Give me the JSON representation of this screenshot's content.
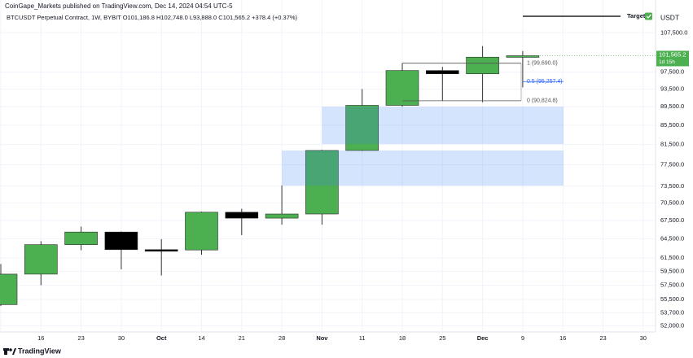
{
  "header": "CoinGape_Markets published on TradingView.com, Dec 14, 2024 04:54 UTC-5",
  "footer": "TradingView",
  "chart_data": {
    "type": "candlestick",
    "title": "BTCUSDT Perpetual Contract, 1W, BYBIT O101,186.8 H102,748.0 L93,888.0 C101,565.2 +378.4 (+0.37%)",
    "currency": "USDT",
    "categories": [
      null,
      "16",
      "23",
      "30",
      "Oct",
      "14",
      "21",
      "28",
      "Nov",
      "11",
      "18",
      "25",
      "Dec",
      "9",
      "16",
      "23",
      "30"
    ],
    "open": [
      54800,
      59100,
      63580,
      65600,
      62800,
      62750,
      68900,
      67900,
      68600,
      80300,
      89800,
      97900,
      97100,
      101186.8,
      null,
      null,
      null
    ],
    "high": [
      60600,
      64130,
      66500,
      65700,
      64450,
      69000,
      69500,
      73600,
      80400,
      93500,
      99700,
      98800,
      104000,
      102748.0,
      null,
      null,
      null
    ],
    "low": [
      54600,
      57500,
      62700,
      59800,
      58900,
      62000,
      65100,
      66800,
      66800,
      80200,
      89500,
      90800,
      90500,
      93888.0,
      null,
      null,
      null
    ],
    "close": [
      59100,
      63580,
      65600,
      62800,
      62750,
      68900,
      67900,
      68600,
      80300,
      89800,
      97900,
      97100,
      101200,
      101565.2,
      null,
      null,
      null
    ],
    "up_color": "#4caf50",
    "down_color": "#000000",
    "log_scale": true,
    "grid": true,
    "ylim": [
      51000,
      116600
    ],
    "yticks": [
      {
        "value": 107500,
        "label": "107,500.0"
      },
      {
        "value": 97500,
        "label": "97,500.0"
      },
      {
        "value": 93500,
        "label": "93,500.0"
      },
      {
        "value": 89500,
        "label": "89,500.0"
      },
      {
        "value": 85500,
        "label": "85,500.0"
      },
      {
        "value": 81500,
        "label": "81,500.0"
      },
      {
        "value": 77500,
        "label": "77,500.0"
      },
      {
        "value": 73500,
        "label": "73,500.0"
      },
      {
        "value": 70500,
        "label": "70,500.0"
      },
      {
        "value": 67500,
        "label": "67,500.0"
      },
      {
        "value": 64500,
        "label": "64,500.0"
      },
      {
        "value": 61500,
        "label": "61,500.0"
      },
      {
        "value": 59500,
        "label": "59,500.0"
      },
      {
        "value": 57500,
        "label": "57,500.0"
      },
      {
        "value": 55500,
        "label": "55,500.0"
      },
      {
        "value": 53700,
        "label": "53,700.0"
      },
      {
        "value": 52000,
        "label": "52,000.0"
      }
    ],
    "zones": [
      {
        "low": 81600,
        "high": 89500
      },
      {
        "low": 73600,
        "high": 80300
      }
    ],
    "zone_color": "rgba(66,133,244,0.22)",
    "fib_levels": [
      {
        "label": "1 (99,690.0)",
        "value": 99690.0,
        "color": "#555555"
      },
      {
        "label": "0.5 (95,257.4)",
        "value": 95257.4,
        "color": "#2962ff"
      },
      {
        "label": "0 (90,824.8)",
        "value": 90824.8,
        "color": "#555555"
      }
    ],
    "target": {
      "label": "Target",
      "value": 112000
    },
    "last_price": {
      "label": "101,565.2",
      "value": 101565.2,
      "countdown": "1d 15h"
    }
  }
}
